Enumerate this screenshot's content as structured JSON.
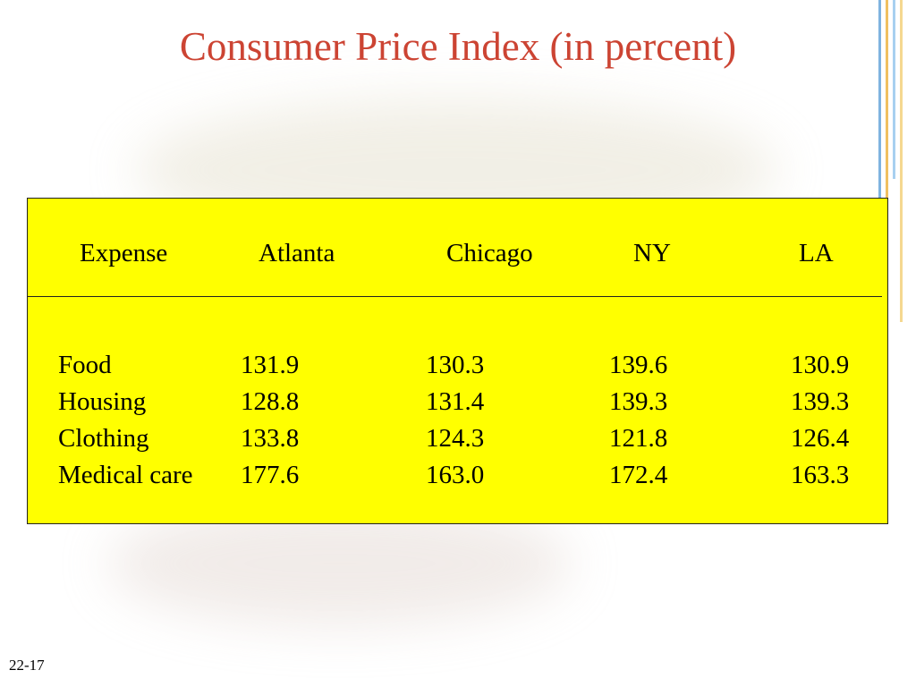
{
  "title": "Consumer Price Index (in percent)",
  "slide_number": "22-17",
  "colors": {
    "title": "#cc4433",
    "table_bg": "#ffff00"
  },
  "table": {
    "headers": [
      "Expense",
      "Atlanta",
      "Chicago",
      "NY",
      "LA"
    ],
    "rows": [
      [
        "Food",
        "131.9",
        "130.3",
        "139.6",
        "130.9"
      ],
      [
        "Housing",
        "128.8",
        "131.4",
        "139.3",
        "139.3"
      ],
      [
        "Clothing",
        "133.8",
        "124.3",
        "121.8",
        "126.4"
      ],
      [
        "Medical care",
        "177.6",
        "163.0",
        "172.4",
        "163.3"
      ]
    ]
  }
}
